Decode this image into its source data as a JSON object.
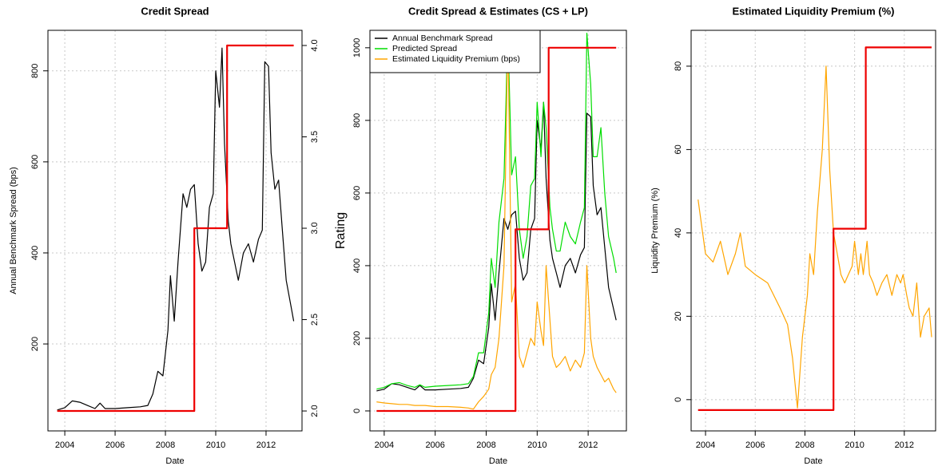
{
  "chart_data": [
    {
      "type": "line",
      "title": "Credit Spread",
      "x_label": "Date",
      "y_label": "Annual Benchmark Spread (bps)",
      "grid": true,
      "xlim": [
        2003.33,
        2013.43
      ],
      "xticks": [
        2004,
        2006,
        2008,
        2010,
        2012
      ],
      "ylim": [
        9,
        889
      ],
      "yticks": [
        200,
        400,
        600,
        800
      ],
      "y2lim": [
        1.891,
        4.083
      ],
      "y2ticks": [
        {
          "value": 2,
          "label": "2.0"
        },
        2.5,
        {
          "value": 3,
          "label": "3.0"
        },
        3.5,
        {
          "value": 4,
          "label": "4.0"
        }
      ],
      "x": [
        2003.7,
        2004.0,
        2004.3,
        2004.6,
        2004.9,
        2005.2,
        2005.4,
        2005.6,
        2006.0,
        2006.5,
        2007.0,
        2007.3,
        2007.5,
        2007.7,
        2007.9,
        2008.1,
        2008.2,
        2008.35,
        2008.5,
        2008.7,
        2008.85,
        2009.0,
        2009.15,
        2009.3,
        2009.45,
        2009.6,
        2009.75,
        2009.9,
        2010.0,
        2010.15,
        2010.25,
        2010.35,
        2010.5,
        2010.6,
        2010.75,
        2010.9,
        2011.1,
        2011.3,
        2011.5,
        2011.7,
        2011.85,
        2011.95,
        2012.1,
        2012.2,
        2012.35,
        2012.5,
        2012.65,
        2012.8,
        2013.0,
        2013.1
      ],
      "series": [
        {
          "color": "#000000",
          "values": [
            55,
            60,
            75,
            72,
            65,
            58,
            70,
            58,
            58,
            60,
            62,
            65,
            90,
            140,
            130,
            230,
            350,
            250,
            380,
            530,
            500,
            540,
            550,
            420,
            360,
            380,
            500,
            530,
            800,
            720,
            850,
            640,
            470,
            420,
            380,
            340,
            400,
            420,
            380,
            430,
            450,
            820,
            810,
            620,
            540,
            560,
            450,
            340,
            280,
            250
          ]
        },
        {
          "color": "#ee0000",
          "axis": "y2",
          "x": [
            2003.7,
            2009.15,
            2009.15,
            2010.45,
            2010.45,
            2013.1
          ],
          "values": [
            2,
            2,
            3,
            3,
            4,
            4
          ]
        }
      ]
    },
    {
      "type": "line",
      "title": "Credit Spread & Estimates (CS + LP)",
      "x_label": "Date",
      "y_label": "Rating",
      "grid": true,
      "legend": "top-left",
      "xlim": [
        2003.44,
        2013.5
      ],
      "xticks": [
        2004,
        2006,
        2008,
        2010,
        2012
      ],
      "ylim": [
        -55,
        1048
      ],
      "yticks": [
        0,
        200,
        400,
        600,
        800,
        1000
      ],
      "x": [
        2003.7,
        2004.0,
        2004.3,
        2004.6,
        2004.9,
        2005.2,
        2005.4,
        2005.6,
        2006.0,
        2006.5,
        2007.0,
        2007.3,
        2007.5,
        2007.7,
        2007.9,
        2008.1,
        2008.2,
        2008.35,
        2008.5,
        2008.7,
        2008.85,
        2009.0,
        2009.15,
        2009.3,
        2009.45,
        2009.6,
        2009.75,
        2009.9,
        2010.0,
        2010.15,
        2010.25,
        2010.35,
        2010.5,
        2010.6,
        2010.75,
        2010.9,
        2011.1,
        2011.3,
        2011.5,
        2011.7,
        2011.85,
        2011.95,
        2012.1,
        2012.2,
        2012.35,
        2012.5,
        2012.65,
        2012.8,
        2013.0,
        2013.1
      ],
      "series": [
        {
          "name": "Annual Benchmark Spread",
          "color": "#000000",
          "values": [
            55,
            60,
            75,
            72,
            65,
            58,
            70,
            58,
            58,
            60,
            62,
            65,
            90,
            140,
            130,
            230,
            350,
            250,
            380,
            530,
            500,
            540,
            550,
            420,
            360,
            380,
            500,
            530,
            800,
            720,
            850,
            640,
            470,
            420,
            380,
            340,
            400,
            420,
            380,
            430,
            450,
            820,
            810,
            620,
            540,
            560,
            450,
            340,
            280,
            250
          ]
        },
        {
          "name": "Predicted Spread",
          "color": "#00dd00",
          "values": [
            60,
            65,
            75,
            78,
            70,
            65,
            72,
            65,
            68,
            70,
            72,
            75,
            95,
            160,
            160,
            270,
            420,
            340,
            520,
            640,
            1050,
            650,
            700,
            500,
            420,
            480,
            620,
            640,
            850,
            700,
            850,
            780,
            560,
            500,
            440,
            440,
            520,
            480,
            460,
            520,
            560,
            1040,
            900,
            700,
            700,
            780,
            600,
            480,
            420,
            380
          ]
        },
        {
          "name": "Estimated Liquidity Premium (bps)",
          "color": "#ffa500",
          "values": [
            25,
            22,
            20,
            18,
            18,
            15,
            15,
            15,
            12,
            12,
            10,
            8,
            5,
            25,
            40,
            60,
            100,
            120,
            200,
            400,
            1050,
            300,
            350,
            150,
            120,
            160,
            200,
            180,
            300,
            220,
            180,
            400,
            250,
            150,
            120,
            130,
            150,
            110,
            140,
            120,
            160,
            400,
            200,
            150,
            120,
            100,
            80,
            90,
            60,
            50
          ]
        },
        {
          "color": "#ee0000",
          "x": [
            2003.7,
            2009.15,
            2009.15,
            2010.45,
            2010.45,
            2013.1
          ],
          "values": [
            0,
            0,
            500,
            500,
            1000,
            1000
          ]
        }
      ]
    },
    {
      "type": "line",
      "title": "Estimated Liquidity Premium (%)",
      "x_label": "Date",
      "y_label": "Liquidity Premium (%)",
      "grid": true,
      "xlim": [
        2003.42,
        2013.26
      ],
      "xticks": [
        2004,
        2006,
        2008,
        2010,
        2012
      ],
      "ylim": [
        -7.5,
        88.6
      ],
      "yticks": [
        0,
        20,
        40,
        60,
        80
      ],
      "x": [
        2003.7,
        2004.0,
        2004.3,
        2004.6,
        2004.9,
        2005.2,
        2005.4,
        2005.6,
        2006.0,
        2006.5,
        2007.0,
        2007.3,
        2007.5,
        2007.7,
        2007.9,
        2008.1,
        2008.2,
        2008.35,
        2008.5,
        2008.7,
        2008.85,
        2009.0,
        2009.15,
        2009.3,
        2009.45,
        2009.6,
        2009.75,
        2009.9,
        2010.0,
        2010.15,
        2010.25,
        2010.35,
        2010.5,
        2010.6,
        2010.75,
        2010.9,
        2011.1,
        2011.3,
        2011.5,
        2011.7,
        2011.85,
        2011.95,
        2012.1,
        2012.2,
        2012.35,
        2012.5,
        2012.65,
        2012.8,
        2013.0,
        2013.1
      ],
      "series": [
        {
          "color": "#ffa500",
          "values": [
            48,
            35,
            33,
            38,
            30,
            35,
            40,
            32,
            30,
            28,
            22,
            18,
            10,
            -2,
            15,
            25,
            35,
            30,
            45,
            60,
            80,
            55,
            40,
            35,
            30,
            28,
            30,
            32,
            38,
            30,
            35,
            30,
            38,
            30,
            28,
            25,
            28,
            30,
            25,
            30,
            28,
            30,
            25,
            22,
            20,
            28,
            15,
            20,
            22,
            15
          ]
        },
        {
          "color": "#ee0000",
          "x": [
            2003.7,
            2009.15,
            2009.15,
            2010.45,
            2010.45,
            2013.1
          ],
          "values": [
            -2.5,
            -2.5,
            41,
            41,
            84.5,
            84.5
          ]
        }
      ]
    }
  ]
}
